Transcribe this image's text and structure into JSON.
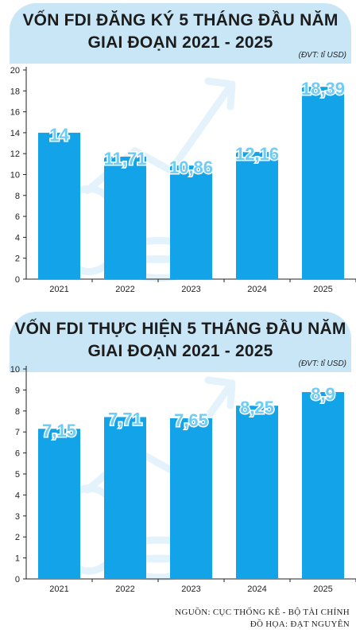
{
  "colors": {
    "bar": "#12a3e8",
    "header": "#c9e6f7",
    "value_label": "#6fcdf5",
    "watermark": "#e3f2fb"
  },
  "chart_data": [
    {
      "type": "bar",
      "title_line1": "VỐN FDI ĐĂNG KÝ 5 THÁNG ĐẦU NĂM",
      "title_line2": "GIAI ĐOẠN 2021 - 2025",
      "unit": "(ĐVT: tỉ USD)",
      "categories": [
        "2021",
        "2022",
        "2023",
        "2024",
        "2025"
      ],
      "values": [
        14,
        11.71,
        10.86,
        12.16,
        18.39
      ],
      "value_labels": [
        "14",
        "11,71",
        "10,86",
        "12,16",
        "18,39"
      ],
      "ylim": [
        0,
        20
      ],
      "yticks": [
        0,
        2,
        4,
        6,
        8,
        10,
        12,
        14,
        16,
        18,
        20
      ],
      "grid": false,
      "legend": "none"
    },
    {
      "type": "bar",
      "title_line1": "VỐN FDI THỰC HIỆN 5 THÁNG ĐẦU NĂM",
      "title_line2": "GIAI ĐOẠN 2021 - 2025",
      "unit": "(ĐVT: tỉ USD)",
      "categories": [
        "2021",
        "2022",
        "2023",
        "2024",
        "2025"
      ],
      "values": [
        7.15,
        7.71,
        7.65,
        8.25,
        8.9
      ],
      "value_labels": [
        "7,15",
        "7,71",
        "7,65",
        "8,25",
        "8,9"
      ],
      "ylim": [
        0,
        10
      ],
      "yticks": [
        0,
        1,
        2,
        3,
        4,
        5,
        6,
        7,
        8,
        9,
        10
      ],
      "grid": false,
      "legend": "none"
    }
  ],
  "footer": {
    "source": "NGUỒN: CỤC THỐNG KÊ - BỘ TÀI CHÍNH",
    "graphics": "ĐỒ HỌA: ĐẠT NGUYÊN"
  }
}
